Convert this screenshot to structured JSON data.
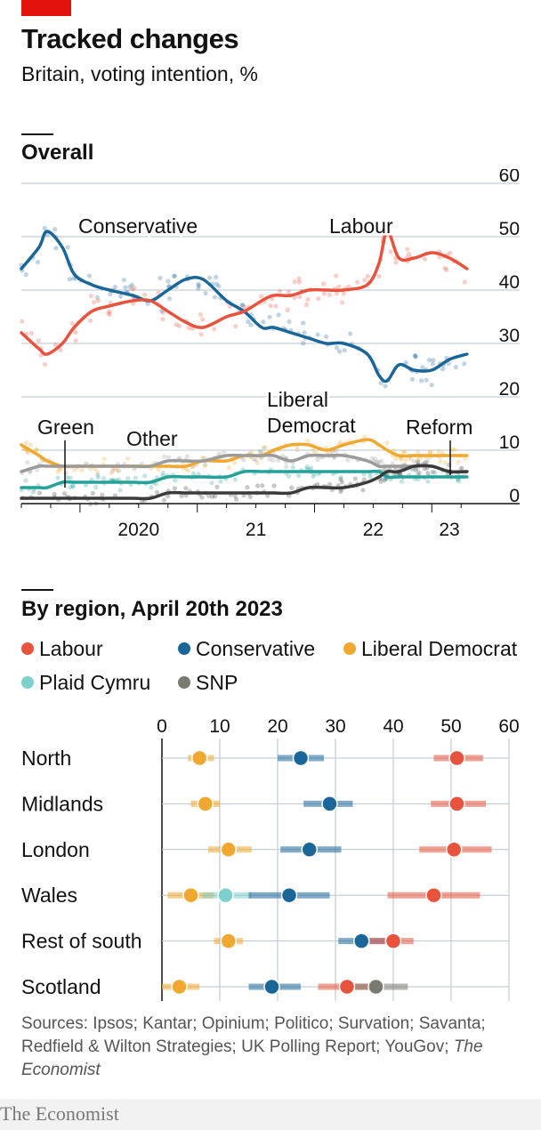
{
  "header": {
    "title": "Tracked changes",
    "subtitle": "Britain, voting intention, %"
  },
  "overall": {
    "section_title": "Overall"
  },
  "region": {
    "section_title": "By region, April 20th 2023"
  },
  "sources": {
    "text": "Sources: Ipsos; Kantar; Opinium; Politico; Survation; Savanta; Redfield & Wilton Strategies; UK Polling Report; YouGov; ",
    "italic": "The Economist"
  },
  "footer": {
    "brand": "The Economist"
  },
  "colors": {
    "labour": "#e8533e",
    "conservative": "#1b6699",
    "libdem": "#f0a830",
    "green": "#24a29a",
    "reform": "#3a3a3a",
    "other": "#9b9b9b",
    "snp": "#7a7a70",
    "plaid": "#7fd0cc"
  },
  "chart_data": [
    {
      "type": "line",
      "title": "Overall",
      "x_tick_labels": [
        "2020",
        "21",
        "22",
        "23"
      ],
      "y_tick_labels": [
        "0",
        "10",
        "20",
        "30",
        "40",
        "50",
        "60"
      ],
      "ylim": [
        0,
        60
      ],
      "x_range": [
        2019.5,
        2023.4
      ],
      "grid": true,
      "x": [
        2019.5,
        2019.65,
        2019.72,
        2019.85,
        2019.95,
        2020.1,
        2020.25,
        2020.45,
        2020.6,
        2020.75,
        2020.9,
        2021.05,
        2021.25,
        2021.4,
        2021.55,
        2021.65,
        2021.8,
        2021.95,
        2022.1,
        2022.25,
        2022.45,
        2022.55,
        2022.62,
        2022.72,
        2022.85,
        2023.0,
        2023.15,
        2023.3
      ],
      "series": [
        {
          "name": "Conservative",
          "color_key": "conservative",
          "values": [
            44,
            48,
            51,
            48,
            43,
            41,
            40,
            39,
            38,
            40,
            42,
            42,
            38,
            36,
            33,
            33,
            32,
            31,
            30,
            30,
            28,
            24,
            23,
            26,
            25,
            25,
            27,
            28
          ]
        },
        {
          "name": "Labour",
          "color_key": "labour",
          "values": [
            32,
            29,
            28,
            30,
            33,
            36,
            37,
            38,
            38,
            36,
            34,
            33,
            35,
            36,
            38,
            39,
            39,
            40,
            40,
            40,
            41,
            45,
            51,
            46,
            46,
            47,
            46,
            44
          ]
        },
        {
          "name": "Liberal Democrat",
          "color_key": "libdem",
          "values": [
            11,
            9,
            8,
            7,
            7,
            7,
            7,
            7,
            7,
            7,
            7,
            8,
            8,
            9,
            9,
            10,
            11,
            11,
            10,
            11,
            12,
            11,
            10,
            9,
            9,
            9,
            9,
            9
          ]
        },
        {
          "name": "Other",
          "color_key": "other",
          "values": [
            6,
            7,
            7,
            7,
            7,
            7,
            7,
            7,
            7,
            8,
            8,
            8,
            9,
            9,
            9,
            9,
            8,
            9,
            9,
            9,
            8,
            7,
            7,
            7,
            7,
            7,
            6,
            6
          ]
        },
        {
          "name": "Green",
          "color_key": "green",
          "values": [
            3,
            3,
            3,
            4,
            4,
            4,
            4,
            4,
            4,
            5,
            5,
            5,
            5,
            6,
            6,
            6,
            6,
            6,
            6,
            6,
            6,
            6,
            5,
            5,
            5,
            5,
            5,
            5
          ]
        },
        {
          "name": "Reform",
          "color_key": "reform",
          "values": [
            1,
            1,
            1,
            1,
            1,
            1,
            1,
            1,
            1,
            2,
            2,
            2,
            2,
            2,
            2,
            2,
            2,
            3,
            3,
            3,
            4,
            5,
            6,
            6,
            7,
            7,
            6,
            6
          ]
        }
      ],
      "labels": {
        "conservative": "Conservative",
        "labour": "Labour",
        "libdem_1": "Liberal",
        "libdem_2": "Democrat",
        "green": "Green",
        "other": "Other",
        "reform": "Reform"
      }
    },
    {
      "type": "scatter",
      "title": "By region, April 20th 2023",
      "x_tick_labels": [
        "0",
        "10",
        "20",
        "30",
        "40",
        "50",
        "60"
      ],
      "xlim": [
        0,
        60
      ],
      "grid": true,
      "legend": [
        {
          "name": "Labour",
          "color_key": "labour"
        },
        {
          "name": "Conservative",
          "color_key": "conservative"
        },
        {
          "name": "Liberal Democrat",
          "color_key": "libdem"
        },
        {
          "name": "Plaid Cymru",
          "color_key": "plaid"
        },
        {
          "name": "SNP",
          "color_key": "snp"
        }
      ],
      "regions": [
        {
          "name": "North",
          "points": [
            {
              "party": "Liberal Democrat",
              "color_key": "libdem",
              "value": 6.5,
              "low": 4.5,
              "high": 9
            },
            {
              "party": "Conservative",
              "color_key": "conservative",
              "value": 24,
              "low": 20,
              "high": 28
            },
            {
              "party": "Labour",
              "color_key": "labour",
              "value": 51,
              "low": 47,
              "high": 55.5
            }
          ]
        },
        {
          "name": "Midlands",
          "points": [
            {
              "party": "Liberal Democrat",
              "color_key": "libdem",
              "value": 7.5,
              "low": 5,
              "high": 10
            },
            {
              "party": "Conservative",
              "color_key": "conservative",
              "value": 29,
              "low": 24.5,
              "high": 33
            },
            {
              "party": "Labour",
              "color_key": "labour",
              "value": 51,
              "low": 46.5,
              "high": 56
            }
          ]
        },
        {
          "name": "London",
          "points": [
            {
              "party": "Liberal Democrat",
              "color_key": "libdem",
              "value": 11.5,
              "low": 8,
              "high": 15.5
            },
            {
              "party": "Conservative",
              "color_key": "conservative",
              "value": 25.5,
              "low": 20.5,
              "high": 31
            },
            {
              "party": "Labour",
              "color_key": "labour",
              "value": 50.5,
              "low": 44.5,
              "high": 57
            }
          ]
        },
        {
          "name": "Wales",
          "points": [
            {
              "party": "Liberal Democrat",
              "color_key": "libdem",
              "value": 5,
              "low": 1,
              "high": 9
            },
            {
              "party": "Plaid Cymru",
              "color_key": "plaid",
              "value": 11,
              "low": 7,
              "high": 15.5
            },
            {
              "party": "Conservative",
              "color_key": "conservative",
              "value": 22,
              "low": 15,
              "high": 29
            },
            {
              "party": "Labour",
              "color_key": "labour",
              "value": 47,
              "low": 39,
              "high": 55
            }
          ]
        },
        {
          "name": "Rest of south",
          "points": [
            {
              "party": "Liberal Democrat",
              "color_key": "libdem",
              "value": 11.5,
              "low": 9,
              "high": 14
            },
            {
              "party": "Conservative",
              "color_key": "conservative",
              "value": 34.5,
              "low": 30.5,
              "high": 38.5
            },
            {
              "party": "Labour",
              "color_key": "labour",
              "value": 40,
              "low": 36,
              "high": 43.5
            }
          ]
        },
        {
          "name": "Scotland",
          "points": [
            {
              "party": "Liberal Democrat",
              "color_key": "libdem",
              "value": 3,
              "low": 0,
              "high": 6.5
            },
            {
              "party": "Conservative",
              "color_key": "conservative",
              "value": 19,
              "low": 15,
              "high": 24
            },
            {
              "party": "Labour",
              "color_key": "labour",
              "value": 32,
              "low": 27,
              "high": 36
            },
            {
              "party": "SNP",
              "color_key": "snp",
              "value": 37,
              "low": 32,
              "high": 42.5
            }
          ]
        }
      ]
    }
  ]
}
